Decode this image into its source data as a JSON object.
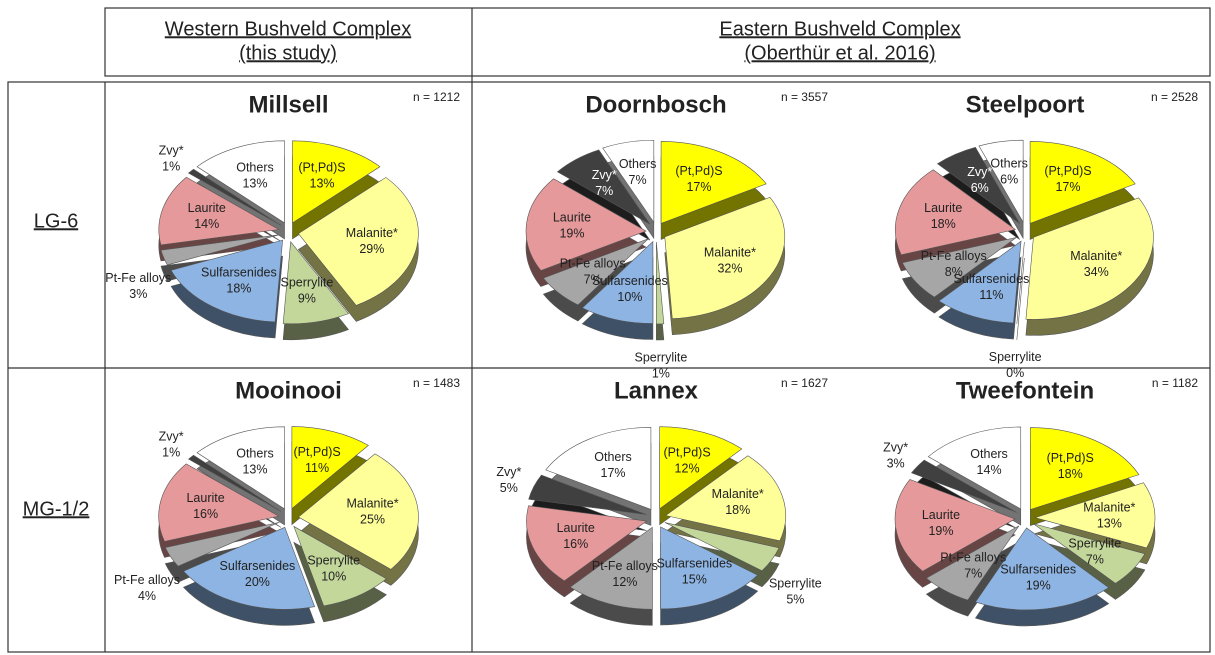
{
  "column_headers": [
    [
      "Western Bushveld Complex",
      "(this study)"
    ],
    [
      "Eastern Bushveld Complex",
      "(Oberthür et al. 2016)"
    ]
  ],
  "row_labels": [
    "LG-6",
    "MG-1/2"
  ],
  "chart_data": [
    {
      "type": "pie",
      "title": "Millsell",
      "annotation": "n = 1212",
      "categories": [
        "(Pt,Pd)S",
        "Malanite*",
        "Sperrylite",
        "Sulfarsenides",
        "Pt-Fe alloys",
        "Laurite",
        "Zvy*",
        "Others"
      ],
      "values": [
        13,
        29,
        9,
        18,
        3,
        14,
        1,
        13
      ],
      "value_labels": [
        "13%",
        "29%",
        "9%",
        "18%",
        "3%",
        "14%",
        "1%",
        "13%"
      ],
      "colors": [
        "#ffff00",
        "#ffff99",
        "#c4d79b",
        "#8db4e2",
        "#a6a6a6",
        "#e6999a",
        "#404040",
        "#ffffff"
      ]
    },
    {
      "type": "pie",
      "title": "Doornbosch",
      "annotation": "n = 3557",
      "categories": [
        "(Pt,Pd)S",
        "Malanite*",
        "Sperrylite",
        "Sulfarsenides",
        "Pt-Fe alloys",
        "Laurite",
        "Zvy*",
        "Others"
      ],
      "values": [
        17,
        32,
        1,
        10,
        7,
        19,
        7,
        7
      ],
      "value_labels": [
        "17%",
        "32%",
        "1%",
        "10%",
        "7%",
        "19%",
        "7%",
        "7%"
      ],
      "colors": [
        "#ffff00",
        "#ffff99",
        "#c4d79b",
        "#8db4e2",
        "#a6a6a6",
        "#e6999a",
        "#404040",
        "#ffffff"
      ]
    },
    {
      "type": "pie",
      "title": "Steelpoort",
      "annotation": "n = 2528",
      "categories": [
        "(Pt,Pd)S",
        "Malanite*",
        "Sperrylite",
        "Sulfarsenides",
        "Pt-Fe alloys",
        "Laurite",
        "Zvy*",
        "Others"
      ],
      "values": [
        17,
        34,
        0,
        11,
        8,
        18,
        6,
        6
      ],
      "value_labels": [
        "17%",
        "34%",
        "0%",
        "11%",
        "8%",
        "18%",
        "6%",
        "6%"
      ],
      "colors": [
        "#ffff00",
        "#ffff99",
        "#c4d79b",
        "#8db4e2",
        "#a6a6a6",
        "#e6999a",
        "#404040",
        "#ffffff"
      ]
    },
    {
      "type": "pie",
      "title": "Mooinooi",
      "annotation": "n = 1483",
      "categories": [
        "(Pt,Pd)S",
        "Malanite*",
        "Sperrylite",
        "Sulfarsenides",
        "Pt-Fe alloys",
        "Laurite",
        "Zvy*",
        "Others"
      ],
      "values": [
        11,
        25,
        10,
        20,
        4,
        16,
        1,
        13
      ],
      "value_labels": [
        "11%",
        "25%",
        "10%",
        "20%",
        "4%",
        "16%",
        "1%",
        "13%"
      ],
      "colors": [
        "#ffff00",
        "#ffff99",
        "#c4d79b",
        "#8db4e2",
        "#a6a6a6",
        "#e6999a",
        "#404040",
        "#ffffff"
      ]
    },
    {
      "type": "pie",
      "title": "Lannex",
      "annotation": "n = 1627",
      "categories": [
        "(Pt,Pd)S",
        "Malanite*",
        "Sperrylite",
        "Sulfarsenides",
        "Pt-Fe alloys",
        "Laurite",
        "Zvy*",
        "Others"
      ],
      "values": [
        12,
        18,
        5,
        15,
        12,
        16,
        5,
        17
      ],
      "value_labels": [
        "12%",
        "18%",
        "5%",
        "15%",
        "12%",
        "16%",
        "5%",
        "17%"
      ],
      "colors": [
        "#ffff00",
        "#ffff99",
        "#c4d79b",
        "#8db4e2",
        "#a6a6a6",
        "#e6999a",
        "#404040",
        "#ffffff"
      ]
    },
    {
      "type": "pie",
      "title": "Tweefontein",
      "annotation": "n = 1182",
      "categories": [
        "(Pt,Pd)S",
        "Malanite*",
        "Sperrylite",
        "Sulfarsenides",
        "Pt-Fe alloys",
        "Laurite",
        "Zvy*",
        "Others"
      ],
      "values": [
        18,
        13,
        7,
        19,
        7,
        19,
        3,
        14
      ],
      "value_labels": [
        "18%",
        "13%",
        "7%",
        "19%",
        "7%",
        "19%",
        "3%",
        "14%"
      ],
      "colors": [
        "#ffff00",
        "#ffff99",
        "#c4d79b",
        "#8db4e2",
        "#a6a6a6",
        "#e6999a",
        "#404040",
        "#ffffff"
      ]
    }
  ]
}
